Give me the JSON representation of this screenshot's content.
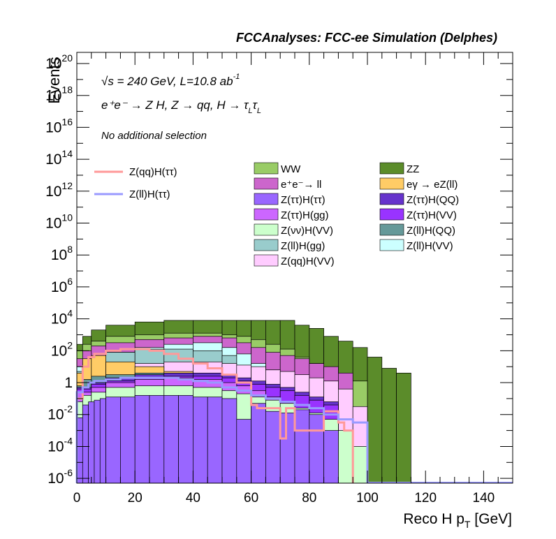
{
  "header": {
    "title": "FCCAnalyses: FCC-ee Simulation (Delphes)",
    "energy_line": "√s = 240 GeV, L=10.8 ab",
    "lumi_exp": "-1",
    "process_line": "e⁺e⁻ → Z H, Z → qq, H → τ",
    "tau_sub": "L",
    "selection": "No additional selection"
  },
  "chart_data": {
    "type": "histogram",
    "title": "FCCAnalyses: FCC-ee Simulation (Delphes)",
    "xlabel": "Reco H p",
    "xlabel_sub": "T",
    "xlabel_unit": " [GeV]",
    "ylabel": "Events",
    "xlim": [
      0,
      150
    ],
    "ylim_log10": [
      -6.3,
      20.7
    ],
    "log_y": true,
    "x_ticks": [
      "0",
      "20",
      "40",
      "60",
      "80",
      "100",
      "120",
      "140"
    ],
    "y_ticks": [
      {
        "base": "10",
        "exp": "-6",
        "log": -6
      },
      {
        "base": "10",
        "exp": "-4",
        "log": -4
      },
      {
        "base": "10",
        "exp": "-2",
        "log": -2
      },
      {
        "base": "1",
        "exp": "",
        "log": 0
      },
      {
        "base": "10",
        "exp": "2",
        "log": 2
      },
      {
        "base": "10",
        "exp": "4",
        "log": 4
      },
      {
        "base": "10",
        "exp": "6",
        "log": 6
      },
      {
        "base": "10",
        "exp": "8",
        "log": 8
      },
      {
        "base": "10",
        "exp": "10",
        "log": 10
      },
      {
        "base": "10",
        "exp": "12",
        "log": 12
      },
      {
        "base": "10",
        "exp": "14",
        "log": 14
      },
      {
        "base": "10",
        "exp": "16",
        "log": 16
      },
      {
        "base": "10",
        "exp": "18",
        "log": 18
      },
      {
        "base": "10",
        "exp": "20",
        "log": 20
      }
    ],
    "stacked_layers_log10_cumulative": [
      {
        "name": "ZZ",
        "color": "#5b8c2a",
        "edges": [
          0,
          2,
          5,
          10,
          20,
          30,
          40,
          50,
          55,
          60,
          65,
          70,
          75,
          80,
          85,
          90,
          95,
          100,
          105,
          110,
          115
        ],
        "tops": [
          2.4,
          2.9,
          3.3,
          3.6,
          3.8,
          3.9,
          3.9,
          3.9,
          3.9,
          3.9,
          3.9,
          3.9,
          3.6,
          3.4,
          2.9,
          2.6,
          2.2,
          1.6,
          0.9,
          0.6
        ]
      },
      {
        "name": "WW",
        "color": "#99cc66",
        "edges": [
          0,
          2,
          5,
          10,
          20,
          30,
          40,
          50,
          55,
          60,
          65,
          70,
          75,
          80,
          85,
          90,
          95,
          100
        ],
        "tops": [
          2.0,
          2.4,
          2.6,
          2.9,
          3.0,
          3.1,
          3.1,
          3.0,
          2.9,
          2.7,
          2.4,
          2.1,
          1.6,
          1.2,
          0.9,
          0.5,
          0.1
        ]
      },
      {
        "name": "e⁺e⁻→ ll",
        "color": "#cc66cc",
        "edges": [
          0,
          2,
          5,
          10,
          20,
          30,
          40,
          50,
          55,
          60,
          65,
          70,
          75,
          80,
          85,
          90,
          95
        ],
        "tops": [
          1.5,
          2.0,
          2.3,
          2.5,
          2.7,
          2.8,
          2.9,
          2.8,
          2.5,
          2.2,
          1.9,
          1.7,
          1.5,
          1.2,
          1.0,
          0.6
        ]
      },
      {
        "name": "Z(ll)H(VV)",
        "color": "#ccffff",
        "edges": [
          0,
          2,
          5,
          10,
          20,
          30,
          40,
          50,
          55,
          60,
          65,
          70,
          75,
          80
        ],
        "tops": [
          1.0,
          1.3,
          1.6,
          1.9,
          2.2,
          2.4,
          2.5,
          2.2,
          1.8,
          1.2,
          0.8,
          0.4,
          0.2
        ]
      },
      {
        "name": "Z(ll)H(gg)",
        "color": "#99cccc",
        "edges": [
          0,
          2,
          5,
          10,
          20,
          30,
          40,
          50,
          55,
          60,
          65,
          70
        ],
        "tops": [
          0.7,
          1.0,
          1.4,
          1.9,
          2.1,
          2.1,
          2.0,
          1.7,
          1.0,
          0.4,
          0.1
        ]
      },
      {
        "name": "Z(qq)H(VV)",
        "color": "#ffccff",
        "edges": [
          0,
          2,
          5,
          10,
          20,
          30,
          40,
          50,
          55,
          60,
          65,
          70,
          75,
          80,
          85,
          90,
          95,
          100
        ],
        "tops": [
          0.3,
          0.6,
          0.9,
          1.0,
          1.2,
          1.3,
          1.3,
          1.2,
          1.1,
          1.0,
          0.8,
          0.7,
          0.5,
          0.3,
          0.1,
          -0.4,
          -1.5
        ]
      },
      {
        "name": "eγ → eZ(ll)",
        "color": "#ffcc66",
        "edges": [
          0,
          2,
          5,
          10,
          20,
          30,
          40,
          50,
          55,
          60,
          65,
          70,
          75,
          80,
          85,
          90
        ],
        "tops": [
          0.6,
          1.5,
          1.7,
          1.3,
          1.0,
          0.7,
          0.5,
          0.4,
          0.2,
          0.0,
          -0.3,
          -0.6,
          -0.9,
          -1.0,
          -1.3
        ]
      },
      {
        "name": "Z(ll)H(QQ)",
        "color": "#669999",
        "edges": [
          0,
          2,
          5,
          10,
          20,
          30,
          40,
          50,
          55,
          60,
          65
        ],
        "tops": [
          -0.2,
          0.2,
          0.4,
          0.5,
          0.6,
          0.6,
          0.5,
          0.3,
          0.0,
          -0.4
        ]
      },
      {
        "name": "Z(ττ)H(QQ)",
        "color": "#6633cc",
        "edges": [
          0,
          5,
          10,
          20,
          30,
          40,
          50,
          55,
          60,
          65,
          70,
          75,
          80,
          85,
          90
        ],
        "tops": [
          -0.3,
          0.0,
          0.3,
          0.5,
          0.6,
          0.6,
          0.5,
          0.3,
          0.1,
          -0.1,
          -0.3,
          -0.6,
          -0.9,
          -1.2
        ]
      },
      {
        "name": "Z(ττ)H(VV)",
        "color": "#9933ff",
        "edges": [
          0,
          5,
          10,
          20,
          30,
          40,
          50,
          55,
          60,
          65,
          70,
          75,
          80,
          85,
          90
        ],
        "tops": [
          -0.4,
          -0.1,
          0.1,
          0.3,
          0.4,
          0.4,
          0.3,
          0.1,
          -0.1,
          -0.3,
          -0.5,
          -0.8,
          -1.1,
          -1.4
        ]
      },
      {
        "name": "Z(ττ)H(gg)",
        "color": "#cc66ff",
        "edges": [
          0,
          5,
          10,
          20,
          30,
          40,
          50,
          55,
          60,
          65,
          70
        ],
        "tops": [
          -0.6,
          -0.3,
          0.0,
          0.2,
          0.3,
          0.2,
          0.0,
          -0.2,
          -0.5,
          -0.9
        ]
      },
      {
        "name": "Z(νν)H(VV)",
        "color": "#ccffcc",
        "edges": [
          0,
          2,
          5,
          10,
          20,
          30,
          40,
          50,
          55,
          60,
          65,
          70,
          75,
          80,
          85,
          90,
          95,
          100
        ],
        "tops": [
          -1.2,
          -0.8,
          -0.6,
          -0.3,
          -0.2,
          -0.2,
          -0.3,
          -0.5,
          -0.7,
          -0.9,
          -1.1,
          -1.3,
          -1.6,
          -1.9,
          -2.3,
          -3.0,
          -4.0
        ]
      },
      {
        "name": "Z(ττ)H(ττ)",
        "color": "#9966ff",
        "edges": [
          0,
          2,
          4,
          6,
          8,
          10,
          15,
          20,
          25,
          30,
          35,
          40,
          45,
          50,
          55,
          60,
          65,
          70,
          75,
          80,
          85,
          90
        ],
        "tops": [
          -2.2,
          -1.4,
          -1.2,
          -1.1,
          -1.0,
          -0.9,
          -0.9,
          -0.8,
          -0.8,
          -0.8,
          -0.8,
          -0.9,
          -0.9,
          -1.0,
          -2.3,
          -1.3,
          -1.8,
          -1.9,
          -1.7,
          -2.0,
          -3.0
        ]
      }
    ],
    "overlay_lines_log10": [
      {
        "name": "Z(qq)H(ττ)",
        "color": "#ff9999",
        "edges": [
          0,
          2,
          4,
          6,
          10,
          15,
          20,
          25,
          30,
          35,
          40,
          45,
          50,
          55,
          60,
          62,
          65,
          70,
          72,
          75,
          80,
          85,
          90,
          92,
          95
        ],
        "values": [
          -1.0,
          1.0,
          1.6,
          1.8,
          2.0,
          2.1,
          2.1,
          2.0,
          1.8,
          1.5,
          1.2,
          0.9,
          0.5,
          0.0,
          -1.4,
          -1.6,
          -1.6,
          -3.5,
          -1.6,
          -3.0,
          -3.0,
          -1.8,
          -2.5,
          -3.0
        ]
      },
      {
        "name": "Z(ll)H(ττ)",
        "color": "#9999ff",
        "edges": [
          0,
          2,
          4,
          6,
          10,
          15,
          20,
          25,
          30,
          35,
          40,
          45,
          50,
          55,
          60,
          65,
          70,
          75,
          80,
          85,
          90,
          95,
          100
        ],
        "values": [
          -0.6,
          -0.3,
          0.0,
          0.1,
          0.2,
          0.3,
          0.3,
          0.3,
          0.3,
          0.2,
          0.1,
          0.0,
          -0.3,
          -0.5,
          -0.8,
          -1.0,
          -1.2,
          -1.4,
          -1.6,
          -2.0,
          -2.3,
          -2.5
        ]
      }
    ],
    "legend_left": [
      {
        "label": "Z(qq)H(ττ)",
        "color": "#ff9999"
      },
      {
        "label": "Z(ll)H(ττ)",
        "color": "#9999ff"
      }
    ],
    "legend_right": [
      {
        "label": "WW",
        "color": "#99cc66"
      },
      {
        "label": "ZZ",
        "color": "#5b8c2a"
      },
      {
        "label": "e⁺e⁻→ ll",
        "color": "#cc66cc"
      },
      {
        "label": "eγ → eZ(ll)",
        "color": "#ffcc66"
      },
      {
        "label": "Z(ττ)H(ττ)",
        "color": "#9966ff"
      },
      {
        "label": "Z(ττ)H(QQ)",
        "color": "#6633cc"
      },
      {
        "label": "Z(ττ)H(gg)",
        "color": "#cc66ff"
      },
      {
        "label": "Z(ττ)H(VV)",
        "color": "#9933ff"
      },
      {
        "label": "Z(νν)H(VV)",
        "color": "#ccffcc"
      },
      {
        "label": "Z(ll)H(QQ)",
        "color": "#669999"
      },
      {
        "label": "Z(ll)H(gg)",
        "color": "#99cccc"
      },
      {
        "label": "Z(ll)H(VV)",
        "color": "#ccffff"
      },
      {
        "label": "Z(qq)H(VV)",
        "color": "#ffccff"
      }
    ]
  }
}
